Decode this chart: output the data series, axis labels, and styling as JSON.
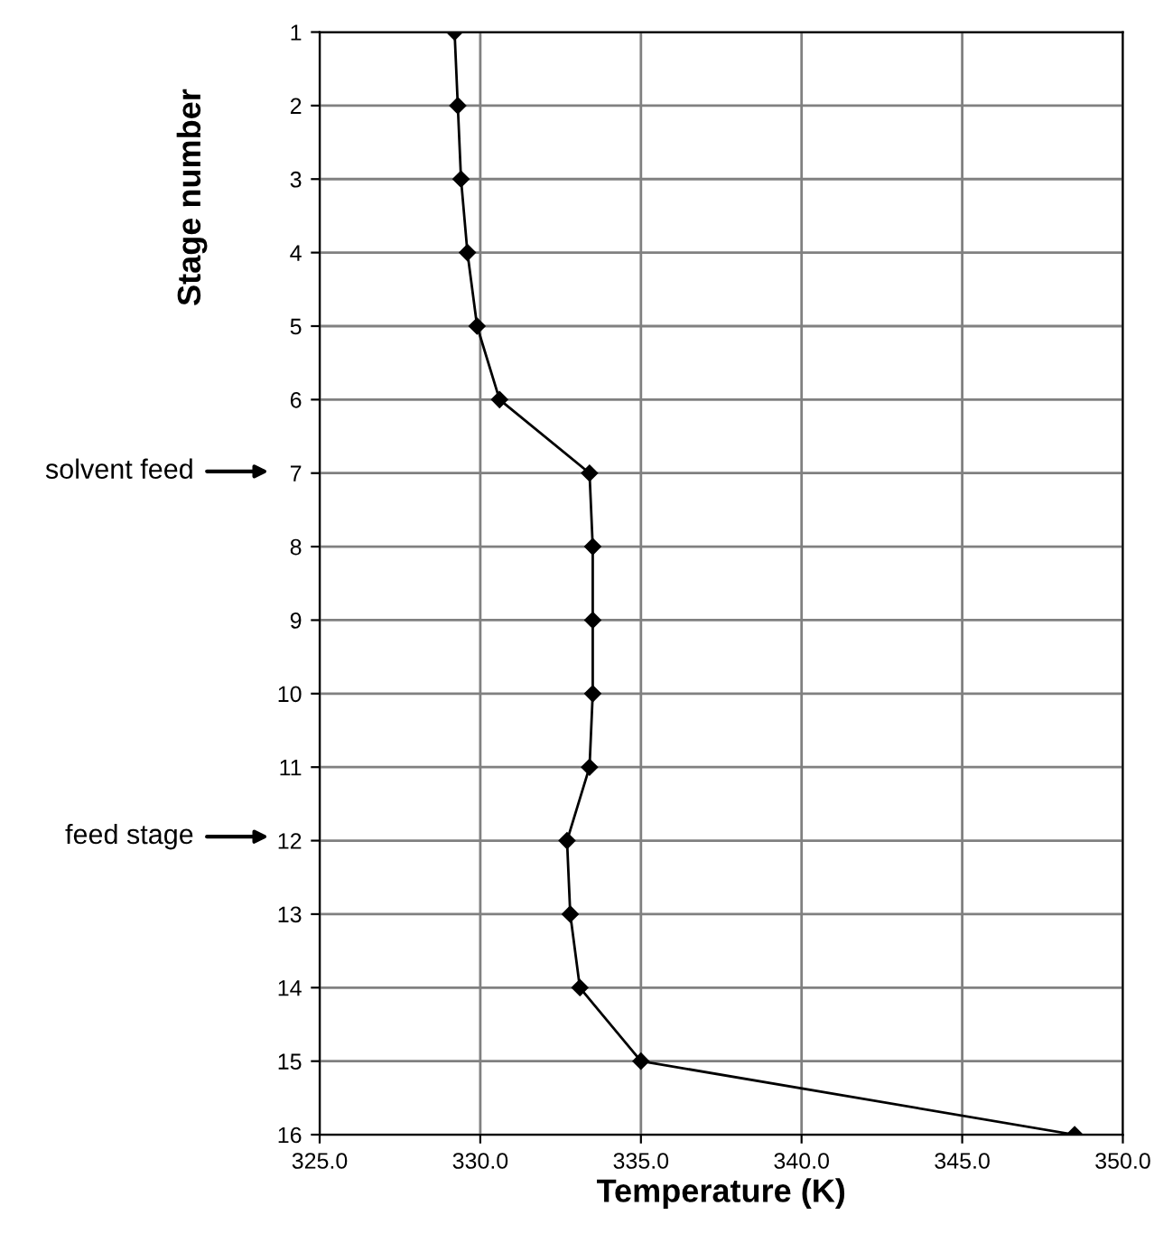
{
  "chart_data": {
    "type": "line",
    "xlabel": "Temperature (K)",
    "ylabel": "Stage number",
    "series": [
      {
        "color": "#000000",
        "x": [
          329.2,
          329.3,
          329.4,
          329.6,
          329.9,
          330.6,
          333.4,
          333.5,
          333.5,
          333.5,
          333.4,
          332.7,
          332.8,
          333.1,
          335.0,
          348.5
        ],
        "values": [
          1,
          2,
          3,
          4,
          5,
          6,
          7,
          8,
          9,
          10,
          11,
          12,
          13,
          14,
          15,
          16
        ]
      }
    ],
    "xlim": [
      325,
      350
    ],
    "xticks": [
      {
        "value": 325,
        "label": "325.0"
      },
      {
        "value": 330,
        "label": "330.0"
      },
      {
        "value": 335,
        "label": "335.0"
      },
      {
        "value": 340,
        "label": "340.0"
      },
      {
        "value": 345,
        "label": "345.0"
      },
      {
        "value": 350,
        "label": "350.0"
      }
    ],
    "ylim": [
      16,
      1
    ],
    "yticks": [
      1,
      2,
      3,
      4,
      5,
      6,
      7,
      8,
      9,
      10,
      11,
      12,
      13,
      14,
      15,
      16
    ],
    "grid": true,
    "marker": "diamond",
    "line_style": "solid",
    "annotations": [
      "solvent feed",
      "feed stage"
    ]
  }
}
